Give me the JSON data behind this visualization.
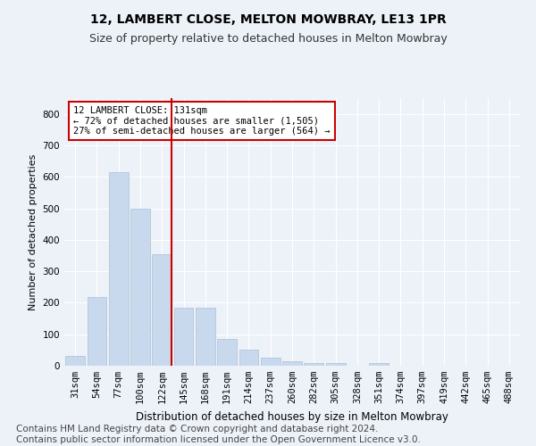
{
  "title": "12, LAMBERT CLOSE, MELTON MOWBRAY, LE13 1PR",
  "subtitle": "Size of property relative to detached houses in Melton Mowbray",
  "xlabel": "Distribution of detached houses by size in Melton Mowbray",
  "ylabel": "Number of detached properties",
  "bar_color": "#c9d9ed",
  "bar_edge_color": "#a8bfd4",
  "background_color": "#edf2f9",
  "grid_color": "#ffffff",
  "annotation_text": "12 LAMBERT CLOSE: 131sqm\n← 72% of detached houses are smaller (1,505)\n27% of semi-detached houses are larger (564) →",
  "vline_color": "#cc0000",
  "annotation_box_color": "#ffffff",
  "annotation_box_edge": "#cc0000",
  "categories": [
    "31sqm",
    "54sqm",
    "77sqm",
    "100sqm",
    "122sqm",
    "145sqm",
    "168sqm",
    "191sqm",
    "214sqm",
    "237sqm",
    "260sqm",
    "282sqm",
    "305sqm",
    "328sqm",
    "351sqm",
    "374sqm",
    "397sqm",
    "419sqm",
    "442sqm",
    "465sqm",
    "488sqm"
  ],
  "values": [
    30,
    218,
    615,
    500,
    355,
    185,
    185,
    85,
    50,
    25,
    13,
    8,
    8,
    0,
    8,
    0,
    0,
    0,
    0,
    0,
    0
  ],
  "vline_index": 4,
  "ylim": [
    0,
    850
  ],
  "yticks": [
    0,
    100,
    200,
    300,
    400,
    500,
    600,
    700,
    800
  ],
  "footer": "Contains HM Land Registry data © Crown copyright and database right 2024.\nContains public sector information licensed under the Open Government Licence v3.0.",
  "footer_fontsize": 7.5,
  "title_fontsize": 10,
  "subtitle_fontsize": 9,
  "ylabel_fontsize": 8,
  "xlabel_fontsize": 8.5,
  "tick_fontsize": 7.5
}
